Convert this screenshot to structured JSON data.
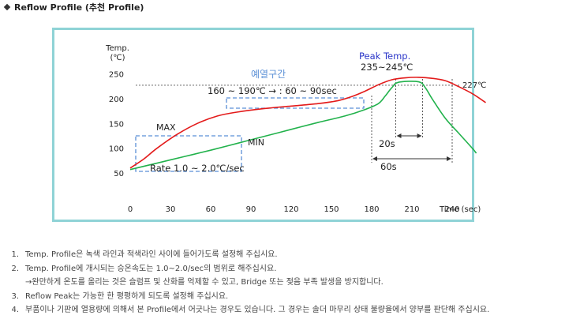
{
  "header": {
    "title": "Reflow Profile (추천 Profile)"
  },
  "chart_data": {
    "type": "line",
    "xlabel": "Time (sec)",
    "ylabel": "Temp.\n(℃)",
    "xlim": [
      0,
      270
    ],
    "ylim": [
      0,
      270
    ],
    "x_ticks": [
      0,
      30,
      60,
      90,
      120,
      150,
      180,
      210,
      240
    ],
    "y_ticks": [
      50,
      100,
      150,
      200,
      250
    ],
    "colors": {
      "max": "#e31a1a",
      "min": "#22b24c",
      "annot": "#5a8fd6",
      "peak": "#2a35c8"
    },
    "series": [
      {
        "name": "MAX",
        "x": [
          0,
          10,
          20,
          35,
          50,
          65,
          80,
          100,
          120,
          140,
          155,
          165,
          175,
          185,
          195,
          205,
          215,
          225,
          235,
          245,
          255,
          265
        ],
        "y": [
          60,
          78,
          100,
          128,
          150,
          165,
          173,
          180,
          185,
          190,
          196,
          204,
          215,
          228,
          238,
          242,
          243,
          241,
          236,
          224,
          210,
          192
        ]
      },
      {
        "name": "MIN",
        "x": [
          0,
          20,
          40,
          60,
          80,
          100,
          120,
          140,
          160,
          175,
          185,
          190,
          195,
          200,
          215,
          220,
          225,
          235,
          245,
          255,
          258
        ],
        "y": [
          57,
          70,
          83,
          96,
          110,
          124,
          138,
          152,
          165,
          178,
          190,
          205,
          222,
          233,
          234,
          222,
          200,
          160,
          130,
          100,
          90
        ]
      }
    ],
    "reference_line": {
      "value": 227,
      "label": "227℃"
    },
    "annotations": {
      "preheat": "예열구간",
      "preheat_range": "160 ~ 190℃ → : 60 ~ 90sec",
      "max_label": "MAX",
      "min_label": "MIN",
      "rate": "Rate  1.0 ~ 2.0℃/sec",
      "peak_title": "Peak Temp.",
      "peak_range": "235~245℃",
      "peak_20s": "20s",
      "peak_60s": "60s"
    }
  },
  "notes": [
    {
      "num": "1.",
      "text": "Temp. Profile은 녹색 라인과 적색라인 사이에 들어가도록 설정해 주십시요."
    },
    {
      "num": "2.",
      "text": "Temp. Profile에 개시되는 승온속도는 1.0~2.0/sec의 범위로 해주십시요."
    },
    {
      "num": "",
      "text": "→완만하게 온도를 올리는 것은 슬럼프 및 산화를 억제할 수 있고,  Bridge 또는 젖음 부족 발생을 방지합니다."
    },
    {
      "num": "3.",
      "text": "Reflow Peak는 가능한 한 평평하게 되도록 설정해 주십시요."
    },
    {
      "num": "4.",
      "text": "부품이나 기판에 열용량에 의해서 본 Profile에서 어긋나는 경우도 있습니다.  그 경우는 솔더 마무리 상태 불량율에서 양부를 판단해 주십시요."
    }
  ]
}
